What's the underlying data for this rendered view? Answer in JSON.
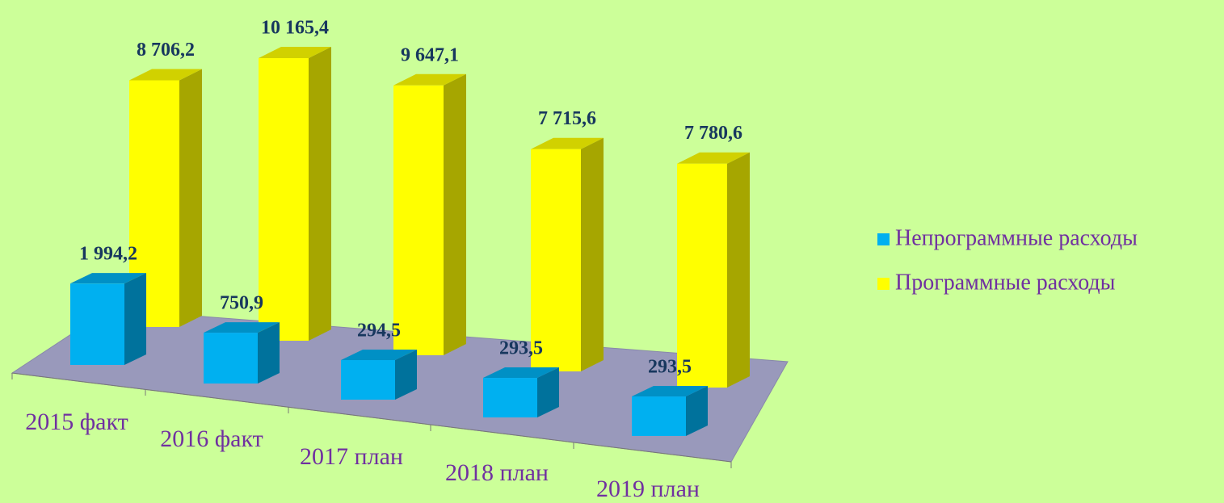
{
  "chart_data": {
    "type": "bar3d",
    "categories": [
      "2015 факт",
      "2016 факт",
      "2017 план",
      "2018 план",
      "2019 план"
    ],
    "series": [
      {
        "name": "Непрограммные расходы",
        "color": "#00b0f0",
        "values": [
          1994.2,
          750.9,
          294.5,
          293.5,
          293.5
        ],
        "value_labels": [
          "1 994,2",
          "750,9",
          "294,5",
          "293,5",
          "293,5"
        ]
      },
      {
        "name": "Программные расходы",
        "color": "#ffff00",
        "values": [
          8706.2,
          10165.4,
          9647.1,
          7715.6,
          7780.6
        ],
        "value_labels": [
          "8 706,2",
          "10 165,4",
          "9 647,1",
          "7 715,6",
          "7 780,6"
        ]
      }
    ],
    "legend": "right"
  }
}
